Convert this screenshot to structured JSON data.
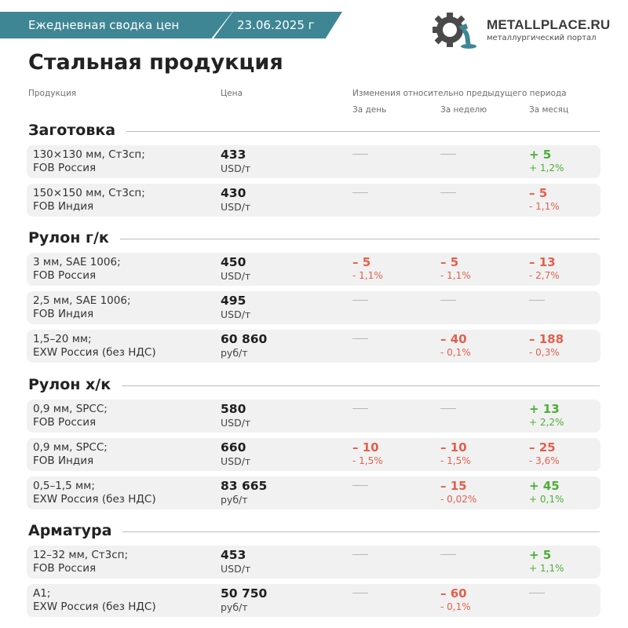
{
  "header": {
    "banner_label": "Ежедневная сводка цен",
    "banner_date": "23.06.2025 г",
    "logo_name": "METALLPLACE.RU",
    "logo_subtitle": "металлургический портал"
  },
  "title": "Стальная продукция",
  "columns": {
    "product": "Продукция",
    "price": "Цена",
    "changes": "Изменения относительно предыдущего периода",
    "day": "За день",
    "week": "За неделю",
    "month": "За месяц"
  },
  "sections": [
    {
      "name": "Заготовка",
      "rows": [
        {
          "line1": "130×130 мм, Ст3сп;",
          "line2": "FOB Россия",
          "price": "433",
          "unit": "USD/т",
          "day": null,
          "week": null,
          "month": {
            "v": "+ 5",
            "p": "+ 1,2%",
            "dir": "up"
          }
        },
        {
          "line1": "150×150 мм, Ст3сп;",
          "line2": "FOB Индия",
          "price": "430",
          "unit": "USD/т",
          "day": null,
          "week": null,
          "month": {
            "v": "– 5",
            "p": "- 1,1%",
            "dir": "down"
          }
        }
      ]
    },
    {
      "name": "Рулон г/к",
      "rows": [
        {
          "line1": "3 мм, SAE 1006;",
          "line2": "FOB Россия",
          "price": "450",
          "unit": "USD/т",
          "day": {
            "v": "– 5",
            "p": "- 1,1%",
            "dir": "down"
          },
          "week": {
            "v": "– 5",
            "p": "- 1,1%",
            "dir": "down"
          },
          "month": {
            "v": "– 13",
            "p": "- 2,7%",
            "dir": "down"
          }
        },
        {
          "line1": "2,5 мм, SAE 1006;",
          "line2": "FOB Индия",
          "price": "495",
          "unit": "USD/т",
          "day": null,
          "week": null,
          "month": null
        },
        {
          "line1": "1,5–20 мм;",
          "line2": "EXW Россия (без НДС)",
          "price": "60 860",
          "unit": "руб/т",
          "day": null,
          "week": {
            "v": "– 40",
            "p": "- 0,1%",
            "dir": "down"
          },
          "month": {
            "v": "– 188",
            "p": "- 0,3%",
            "dir": "down"
          }
        }
      ]
    },
    {
      "name": "Рулон х/к",
      "rows": [
        {
          "line1": "0,9 мм, SPCC;",
          "line2": "FOB Россия",
          "price": "580",
          "unit": "USD/т",
          "day": null,
          "week": null,
          "month": {
            "v": "+ 13",
            "p": "+ 2,2%",
            "dir": "up"
          }
        },
        {
          "line1": "0,9 мм, SPCC;",
          "line2": "FOB Индия",
          "price": "660",
          "unit": "USD/т",
          "day": {
            "v": "– 10",
            "p": "- 1,5%",
            "dir": "down"
          },
          "week": {
            "v": "– 10",
            "p": "- 1,5%",
            "dir": "down"
          },
          "month": {
            "v": "– 25",
            "p": "- 3,6%",
            "dir": "down"
          }
        },
        {
          "line1": "0,5–1,5 мм;",
          "line2": "EXW Россия (без НДС)",
          "price": "83 665",
          "unit": "руб/т",
          "day": null,
          "week": {
            "v": "– 15",
            "p": "- 0,02%",
            "dir": "down"
          },
          "month": {
            "v": "+ 45",
            "p": "+ 0,1%",
            "dir": "up"
          }
        }
      ]
    },
    {
      "name": "Арматура",
      "rows": [
        {
          "line1": "12–32 мм, Ст3сп;",
          "line2": "FOB Россия",
          "price": "453",
          "unit": "USD/т",
          "day": null,
          "week": null,
          "month": {
            "v": "+ 5",
            "p": "+ 1,1%",
            "dir": "up"
          }
        },
        {
          "line1": "A1;",
          "line2": "EXW Россия (без НДС)",
          "price": "50 750",
          "unit": "руб/т",
          "day": null,
          "week": {
            "v": "– 60",
            "p": "- 0,1%",
            "dir": "down"
          },
          "month": null
        }
      ]
    }
  ],
  "colors": {
    "brand": "#3f8694",
    "up": "#4caf37",
    "down": "#e2604d",
    "row_bg": "#f1f1f1"
  }
}
